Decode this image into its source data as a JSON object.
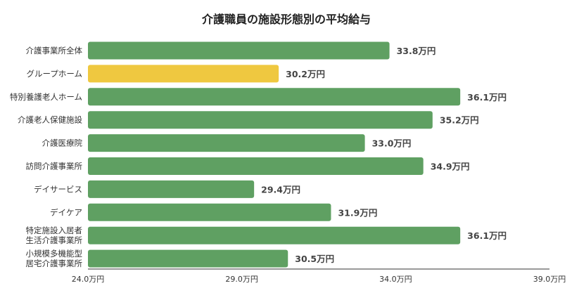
{
  "chart_data": {
    "type": "bar",
    "orientation": "horizontal",
    "title": "介護職員の施設形態別の平均給与",
    "categories": [
      [
        "介護事業所全体"
      ],
      [
        "グループホーム"
      ],
      [
        "特別養護老人ホーム"
      ],
      [
        "介護老人保健施設"
      ],
      [
        "介護医療院"
      ],
      [
        "訪問介護事業所"
      ],
      [
        "デイサービス"
      ],
      [
        "デイケア"
      ],
      [
        "特定施設入居者",
        "生活介護事業所"
      ],
      [
        "小規模多機能型",
        "居宅介護事業所"
      ]
    ],
    "values": [
      33.8,
      30.2,
      36.1,
      35.2,
      33.0,
      34.9,
      29.4,
      31.9,
      36.1,
      30.5
    ],
    "value_labels": [
      "33.8万円",
      "30.2万円",
      "36.1万円",
      "35.2万円",
      "33.0万円",
      "34.9万円",
      "29.4万円",
      "31.9万円",
      "36.1万円",
      "30.5万円"
    ],
    "highlight_index": 1,
    "xlim": [
      24.0,
      39.0
    ],
    "xticks": [
      24.0,
      29.0,
      34.0,
      39.0
    ],
    "xtick_labels": [
      "24.0万円",
      "29.0万円",
      "34.0万円",
      "39.0万円"
    ],
    "xlabel": "",
    "ylabel": "",
    "grid": false,
    "legend": "none",
    "colors": {
      "bar": "#5fa062",
      "highlight": "#efc840",
      "axis": "#333333"
    }
  }
}
